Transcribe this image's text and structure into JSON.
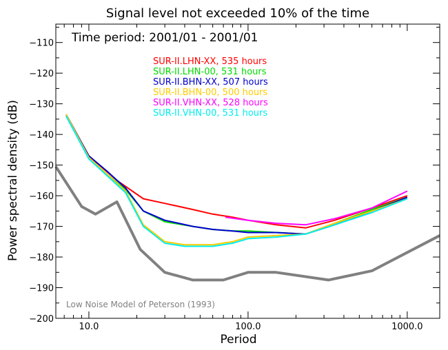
{
  "chart_data": {
    "type": "line",
    "title": "Signal level not exceeded 10% of the time",
    "subtitle": "Time period: 2001/01 - 2001/01",
    "xlabel": "Period",
    "ylabel": "Power spectral density (dB)",
    "xscale": "log",
    "xlim": [
      6.2,
      1600
    ],
    "ylim": [
      -200,
      -104
    ],
    "x_ticks": [
      {
        "value": 10,
        "label": "10.0"
      },
      {
        "value": 100,
        "label": "100.0"
      },
      {
        "value": 1000,
        "label": "1000.0"
      }
    ],
    "y_ticks": [
      {
        "value": -110,
        "label": "−110"
      },
      {
        "value": -120,
        "label": "−120"
      },
      {
        "value": -130,
        "label": "−130"
      },
      {
        "value": -140,
        "label": "−140"
      },
      {
        "value": -150,
        "label": "−150"
      },
      {
        "value": -160,
        "label": "−160"
      },
      {
        "value": -170,
        "label": "−170"
      },
      {
        "value": -180,
        "label": "−180"
      },
      {
        "value": -190,
        "label": "−190"
      },
      {
        "value": -200,
        "label": "−200"
      }
    ],
    "grid": false,
    "legend_position": "top-center",
    "series": [
      {
        "name": "SUR-II.LHN-XX, 535 hours",
        "color": "#ff0000",
        "points": [
          [
            7.2,
            -133.5
          ],
          [
            10,
            -147
          ],
          [
            15,
            -155
          ],
          [
            22,
            -161
          ],
          [
            30,
            -162.5
          ],
          [
            45,
            -164.5
          ],
          [
            60,
            -166
          ],
          [
            80,
            -167
          ],
          [
            100,
            -168
          ],
          [
            150,
            -169.5
          ],
          [
            230,
            -170.5
          ],
          [
            350,
            -168
          ],
          [
            600,
            -164
          ],
          [
            1000,
            -160
          ]
        ]
      },
      {
        "name": "SUR-II.LHN-00, 531 hours",
        "color": "#00dd00",
        "points": [
          [
            7.2,
            -134
          ],
          [
            10,
            -147.5
          ],
          [
            13,
            -153
          ],
          [
            17,
            -158
          ],
          [
            22,
            -165
          ],
          [
            30,
            -168.5
          ],
          [
            45,
            -170
          ],
          [
            60,
            -171
          ],
          [
            80,
            -171.5
          ],
          [
            100,
            -171.5
          ],
          [
            150,
            -172
          ],
          [
            230,
            -172.5
          ],
          [
            350,
            -169
          ],
          [
            600,
            -164.5
          ],
          [
            1000,
            -160.5
          ]
        ]
      },
      {
        "name": "SUR-II.BHN-XX, 507 hours",
        "color": "#0000cc",
        "points": [
          [
            7.2,
            -133.5
          ],
          [
            10,
            -147
          ],
          [
            13,
            -152
          ],
          [
            17,
            -157.5
          ],
          [
            22,
            -165
          ],
          [
            30,
            -168
          ],
          [
            45,
            -170
          ],
          [
            60,
            -171
          ],
          [
            80,
            -171.5
          ],
          [
            100,
            -172
          ],
          [
            150,
            -172
          ],
          [
            230,
            -172.5
          ],
          [
            350,
            -169.5
          ],
          [
            600,
            -165
          ],
          [
            1000,
            -160.5
          ]
        ]
      },
      {
        "name": "SUR-II.BHN-00, 500 hours",
        "color": "#ffcc00",
        "points": [
          [
            7.2,
            -133.5
          ],
          [
            10,
            -147.5
          ],
          [
            17,
            -158.5
          ],
          [
            22,
            -169.5
          ],
          [
            30,
            -175
          ],
          [
            40,
            -176
          ],
          [
            60,
            -176
          ],
          [
            80,
            -175
          ],
          [
            100,
            -173.5
          ],
          [
            150,
            -173
          ],
          [
            230,
            -172.5
          ],
          [
            350,
            -169
          ],
          [
            600,
            -165
          ],
          [
            1000,
            -161
          ]
        ]
      },
      {
        "name": "SUR-II.VHN-XX, 528 hours",
        "color": "#ff00ff",
        "points": [
          [
            72,
            -167
          ],
          [
            100,
            -168
          ],
          [
            150,
            -169
          ],
          [
            230,
            -169.5
          ],
          [
            350,
            -167.5
          ],
          [
            600,
            -164
          ],
          [
            1000,
            -158.5
          ]
        ]
      },
      {
        "name": "SUR-II.VHN-00, 531 hours",
        "color": "#00eeee",
        "points": [
          [
            7.2,
            -134
          ],
          [
            10,
            -148
          ],
          [
            17,
            -159
          ],
          [
            22,
            -170
          ],
          [
            30,
            -175.5
          ],
          [
            40,
            -176.5
          ],
          [
            60,
            -176.5
          ],
          [
            80,
            -175.5
          ],
          [
            100,
            -174
          ],
          [
            150,
            -173.5
          ],
          [
            230,
            -172.5
          ],
          [
            350,
            -169.5
          ],
          [
            600,
            -165.5
          ],
          [
            1000,
            -161
          ]
        ]
      }
    ],
    "reference": {
      "label": "Low Noise Model of Peterson (1993)",
      "color": "#808080",
      "points": [
        [
          6.2,
          -150.5
        ],
        [
          9,
          -163.5
        ],
        [
          11,
          -166
        ],
        [
          15,
          -162
        ],
        [
          21,
          -177.5
        ],
        [
          30,
          -185
        ],
        [
          45,
          -187.5
        ],
        [
          70,
          -187.5
        ],
        [
          100,
          -185
        ],
        [
          150,
          -185
        ],
        [
          320,
          -187.5
        ],
        [
          600,
          -184.5
        ],
        [
          1600,
          -173
        ]
      ]
    }
  }
}
